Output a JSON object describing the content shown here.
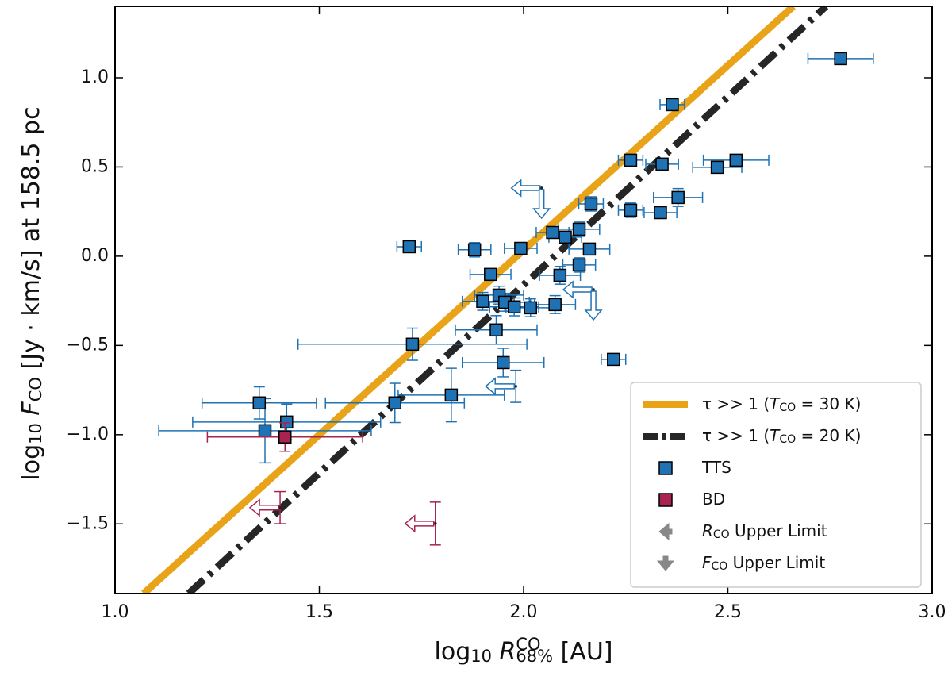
{
  "chart_data": {
    "type": "scatter",
    "xlabel": [
      [
        "log"
      ],
      [
        "10",
        "sub"
      ],
      [
        " "
      ],
      [
        "R",
        "i"
      ],
      [
        "CO",
        "sup"
      ],
      [
        "68%",
        "sub"
      ],
      [
        " [AU]"
      ]
    ],
    "ylabel": [
      [
        "log"
      ],
      [
        "10",
        "sub"
      ],
      [
        " "
      ],
      [
        "F",
        "i"
      ],
      [
        "CO",
        "sub"
      ],
      [
        " [Jy · km/s] at 158.5 pc"
      ]
    ],
    "xlim": [
      1.0,
      3.0
    ],
    "ylim": [
      -1.89,
      1.4
    ],
    "xticks": [
      {
        "value": 1.0,
        "label": "1.0"
      },
      {
        "value": 1.5,
        "label": "1.5"
      },
      {
        "value": 2.0,
        "label": "2.0"
      },
      {
        "value": 2.5,
        "label": "2.5"
      },
      {
        "value": 3.0,
        "label": "3.0"
      }
    ],
    "yticks": [
      {
        "value": -1.5,
        "label": "−1.5"
      },
      {
        "value": -1.0,
        "label": "−1.0"
      },
      {
        "value": -0.5,
        "label": "−0.5"
      },
      {
        "value": 0,
        "label": "0.0"
      },
      {
        "value": 0.5,
        "label": "0.5"
      },
      {
        "value": 1.0,
        "label": "1.0"
      }
    ],
    "legend": "lower right",
    "lines": [
      {
        "name": [
          [
            "τ >> 1 ("
          ],
          [
            "T",
            "i"
          ],
          [
            "CO",
            "sub"
          ],
          [
            " = 30 K)"
          ]
        ],
        "color": "#e9a319",
        "dash": "solid",
        "x": [
          1.07,
          2.66
        ],
        "y": [
          -1.89,
          1.4
        ]
      },
      {
        "name": [
          [
            "τ >> 1 ("
          ],
          [
            "T",
            "i"
          ],
          [
            "CO",
            "sub"
          ],
          [
            " = 20 K)"
          ]
        ],
        "color": "#262626",
        "dash": "dashdot",
        "x": [
          1.18,
          2.74
        ],
        "y": [
          -1.89,
          1.4
        ]
      }
    ],
    "series": [
      {
        "name": [
          [
            "TTS"
          ]
        ],
        "color": "#1f73b4",
        "x": [
          2.776,
          2.364,
          2.262,
          2.339,
          2.474,
          2.52,
          2.378,
          2.262,
          2.335,
          2.165,
          2.071,
          2.102,
          2.136,
          2.161,
          2.136,
          2.089,
          1.993,
          1.88,
          1.72,
          1.919,
          1.9,
          1.94,
          1.954,
          1.977,
          2.017,
          2.077,
          1.933,
          1.95,
          2.22,
          1.728,
          1.823,
          1.685,
          1.353,
          1.367,
          1.42
        ],
        "y": [
          1.107,
          0.849,
          0.538,
          0.516,
          0.498,
          0.538,
          0.329,
          0.258,
          0.244,
          0.293,
          0.133,
          0.107,
          0.151,
          0.04,
          -0.049,
          -0.107,
          0.044,
          0.036,
          0.053,
          -0.102,
          -0.253,
          -0.218,
          -0.258,
          -0.284,
          -0.289,
          -0.271,
          -0.413,
          -0.596,
          -0.578,
          -0.493,
          -0.778,
          -0.822,
          -0.822,
          -0.978,
          -0.929
        ],
        "xerr": [
          0.08,
          0.03,
          0.03,
          0.04,
          0.06,
          0.08,
          0.06,
          0.03,
          0.04,
          0.03,
          0.04,
          0.04,
          0.05,
          0.05,
          0.04,
          0.05,
          0.04,
          0.04,
          0.03,
          0.05,
          0.05,
          0.06,
          0.06,
          0.06,
          0.06,
          0.05,
          0.1,
          0.1,
          0.03,
          0.28,
          0.13,
          0.17,
          0.14,
          0.26,
          0.23
        ],
        "yerr": [
          0.02,
          0.02,
          0.02,
          0.02,
          0.02,
          0.02,
          0.05,
          0.04,
          0.02,
          0.04,
          0.03,
          0.03,
          0.04,
          0.03,
          0.04,
          0.05,
          0.03,
          0.04,
          0.02,
          0.03,
          0.05,
          0.05,
          0.05,
          0.05,
          0.05,
          0.05,
          0.08,
          0.08,
          0.02,
          0.09,
          0.15,
          0.11,
          0.09,
          0.18,
          0.1
        ],
        "limits": {
          "x": [
            2.044,
            2.171,
            1.981
          ],
          "y": [
            0.382,
            -0.187,
            -0.729
          ],
          "yerr": [
            0,
            0,
            0.09
          ],
          "kind": [
            "RF",
            "RF",
            "R"
          ]
        }
      },
      {
        "name": [
          [
            "BD"
          ]
        ],
        "color": "#a8234f",
        "x": [
          1.416
        ],
        "y": [
          -1.013
        ],
        "xerr": [
          0.19
        ],
        "yerr": [
          0.08
        ],
        "limits": {
          "x": [
            1.404,
            1.784
          ],
          "y": [
            -1.409,
            -1.498
          ],
          "yerr": [
            0.09,
            0.12
          ],
          "kind": [
            "R",
            "R"
          ]
        }
      }
    ],
    "legend_extra": [
      {
        "symbol": "R",
        "color": "#888888",
        "name": [
          [
            "R",
            "i"
          ],
          [
            "CO",
            "sub"
          ],
          [
            " Upper Limit"
          ]
        ]
      },
      {
        "symbol": "F",
        "color": "#888888",
        "name": [
          [
            "F",
            "i"
          ],
          [
            "CO",
            "sub"
          ],
          [
            " Upper Limit"
          ]
        ]
      }
    ]
  }
}
